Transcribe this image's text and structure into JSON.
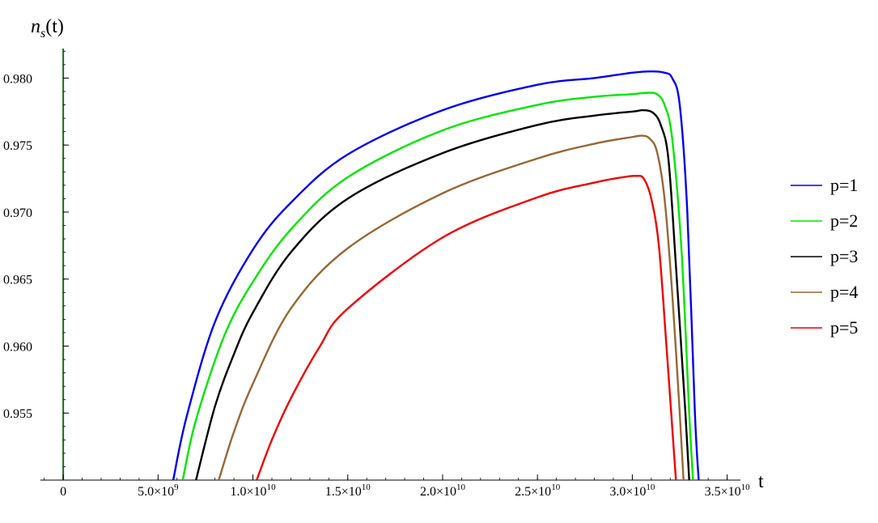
{
  "chart_data": {
    "type": "line",
    "ylabel": "n_s(t)",
    "xlabel": "t",
    "xlim": [
      -1200000000.0,
      35700000000.0
    ],
    "ylim": [
      0.95,
      0.9822
    ],
    "x_ticks": [
      {
        "value": 0,
        "mantissa": "0",
        "exp": ""
      },
      {
        "value": 5000000000.0,
        "mantissa": "5.0",
        "exp": "9"
      },
      {
        "value": 10000000000.0,
        "mantissa": "1.0",
        "exp": "10"
      },
      {
        "value": 15000000000.0,
        "mantissa": "1.5",
        "exp": "10"
      },
      {
        "value": 20000000000.0,
        "mantissa": "2.0",
        "exp": "10"
      },
      {
        "value": 25000000000.0,
        "mantissa": "2.5",
        "exp": "10"
      },
      {
        "value": 30000000000.0,
        "mantissa": "3.0",
        "exp": "10"
      },
      {
        "value": 35000000000.0,
        "mantissa": "3.5",
        "exp": "10"
      }
    ],
    "y_ticks": [
      {
        "value": 0.955,
        "label": "0.955"
      },
      {
        "value": 0.96,
        "label": "0.960"
      },
      {
        "value": 0.965,
        "label": "0.965"
      },
      {
        "value": 0.97,
        "label": "0.970"
      },
      {
        "value": 0.975,
        "label": "0.975"
      },
      {
        "value": 0.98,
        "label": "0.980"
      }
    ],
    "series": [
      {
        "name": "p=1",
        "color": "#0000ee",
        "points": [
          [
            5800000000.0,
            0.95
          ],
          [
            6500000000.0,
            0.9547
          ],
          [
            8000000000.0,
            0.9618
          ],
          [
            10000000000.0,
            0.9672
          ],
          [
            12000000000.0,
            0.9707
          ],
          [
            15000000000.0,
            0.9743
          ],
          [
            20000000000.0,
            0.9776
          ],
          [
            25000000000.0,
            0.9795
          ],
          [
            28000000000.0,
            0.98
          ],
          [
            30000000000.0,
            0.9804
          ],
          [
            31000000000.0,
            0.9805
          ],
          [
            31700000000.0,
            0.9804
          ],
          [
            32100000000.0,
            0.98
          ],
          [
            32500000000.0,
            0.978
          ],
          [
            32900000000.0,
            0.97
          ],
          [
            33300000000.0,
            0.955
          ],
          [
            33500000000.0,
            0.95
          ]
        ]
      },
      {
        "name": "p=2",
        "color": "#00e600",
        "points": [
          [
            6300000000.0,
            0.95
          ],
          [
            7000000000.0,
            0.9545
          ],
          [
            8500000000.0,
            0.9608
          ],
          [
            10000000000.0,
            0.9648
          ],
          [
            12000000000.0,
            0.9687
          ],
          [
            15000000000.0,
            0.9726
          ],
          [
            20000000000.0,
            0.9761
          ],
          [
            25000000000.0,
            0.978
          ],
          [
            28000000000.0,
            0.9786
          ],
          [
            30000000000.0,
            0.9788
          ],
          [
            30800000000.0,
            0.9789
          ],
          [
            31300000000.0,
            0.9788
          ],
          [
            31700000000.0,
            0.978
          ],
          [
            32100000000.0,
            0.9755
          ],
          [
            32600000000.0,
            0.967
          ],
          [
            33000000000.0,
            0.955
          ],
          [
            33200000000.0,
            0.95
          ]
        ]
      },
      {
        "name": "p=3",
        "color": "#000000",
        "points": [
          [
            7000000000.0,
            0.95
          ],
          [
            8000000000.0,
            0.9555
          ],
          [
            9000000000.0,
            0.9594
          ],
          [
            10000000000.0,
            0.9625
          ],
          [
            12000000000.0,
            0.967
          ],
          [
            15000000000.0,
            0.971
          ],
          [
            20000000000.0,
            0.9744
          ],
          [
            25000000000.0,
            0.9765
          ],
          [
            28000000000.0,
            0.9772
          ],
          [
            30000000000.0,
            0.9775
          ],
          [
            30600000000.0,
            0.9776
          ],
          [
            31100000000.0,
            0.9774
          ],
          [
            31500000000.0,
            0.9765
          ],
          [
            31900000000.0,
            0.974
          ],
          [
            32300000000.0,
            0.966
          ],
          [
            32800000000.0,
            0.955
          ],
          [
            33000000000.0,
            0.95
          ]
        ]
      },
      {
        "name": "p=4",
        "color": "#996633",
        "points": [
          [
            8200000000.0,
            0.95
          ],
          [
            9000000000.0,
            0.9536
          ],
          [
            10000000000.0,
            0.9572
          ],
          [
            12000000000.0,
            0.9628
          ],
          [
            15000000000.0,
            0.9673
          ],
          [
            20000000000.0,
            0.9714
          ],
          [
            25000000000.0,
            0.974
          ],
          [
            28000000000.0,
            0.9751
          ],
          [
            30000000000.0,
            0.9756
          ],
          [
            30500000000.0,
            0.9757
          ],
          [
            30900000000.0,
            0.9755
          ],
          [
            31300000000.0,
            0.9745
          ],
          [
            31700000000.0,
            0.971
          ],
          [
            32100000000.0,
            0.964
          ],
          [
            32500000000.0,
            0.955
          ],
          [
            32700000000.0,
            0.95
          ]
        ]
      },
      {
        "name": "p=5",
        "color": "#ee0000",
        "points": [
          [
            10200000000.0,
            0.95
          ],
          [
            11000000000.0,
            0.953
          ],
          [
            12000000000.0,
            0.9561
          ],
          [
            13500000000.0,
            0.9599
          ],
          [
            15000000000.0,
            0.9628
          ],
          [
            20000000000.0,
            0.9681
          ],
          [
            25000000000.0,
            0.9711
          ],
          [
            28000000000.0,
            0.9722
          ],
          [
            29500000000.0,
            0.9726
          ],
          [
            30200000000.0,
            0.9727
          ],
          [
            30600000000.0,
            0.9725
          ],
          [
            31000000000.0,
            0.971
          ],
          [
            31400000000.0,
            0.9675
          ],
          [
            31800000000.0,
            0.96
          ],
          [
            32200000000.0,
            0.952
          ],
          [
            32300000000.0,
            0.95
          ]
        ]
      }
    ],
    "legend_position": "right"
  }
}
